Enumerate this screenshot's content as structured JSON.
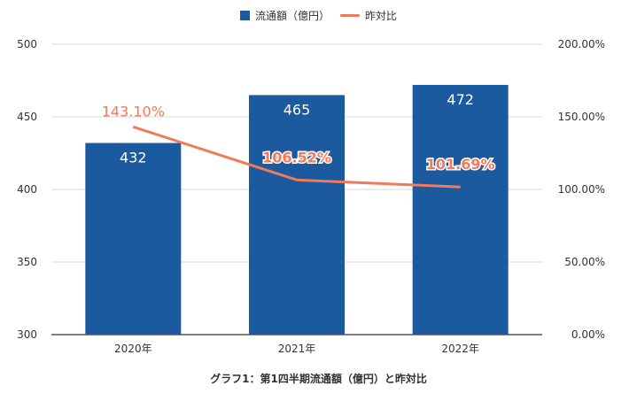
{
  "chart_data": {
    "type": "bar",
    "categories": [
      "2020年",
      "2021年",
      "2022年"
    ],
    "series": [
      {
        "name": "流通額（億円）",
        "kind": "bar",
        "axis": "left",
        "values": [
          432,
          465,
          472
        ],
        "data_labels": [
          "432",
          "465",
          "472"
        ],
        "color": "#1c5aa0"
      },
      {
        "name": "昨対比",
        "kind": "line",
        "axis": "right",
        "values": [
          143.1,
          106.52,
          101.69
        ],
        "data_labels": [
          "143.10%",
          "106.52%",
          "101.69%"
        ],
        "color": "#ef7a5c"
      }
    ],
    "y_left": {
      "min": 300,
      "max": 500,
      "ticks": [
        "300",
        "350",
        "400",
        "450",
        "500"
      ],
      "tick_values": [
        300,
        350,
        400,
        450,
        500
      ]
    },
    "y_right": {
      "min": 0,
      "max": 200,
      "ticks": [
        "0.00%",
        "50.00%",
        "100.00%",
        "150.00%",
        "200.00%"
      ],
      "tick_values": [
        0,
        50,
        100,
        150,
        200
      ]
    },
    "grid": true,
    "legend_position": "top-center",
    "caption": "グラフ1：第1四半期流通額（億円）と昨対比"
  }
}
